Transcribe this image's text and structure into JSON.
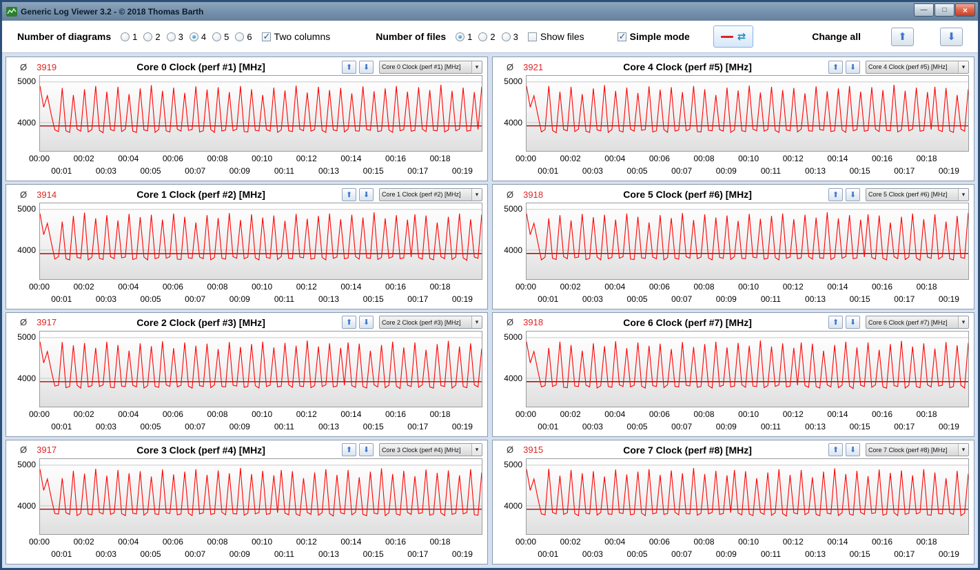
{
  "window": {
    "title": "Generic Log Viewer 3.2 - © 2018 Thomas Barth",
    "controls": {
      "minimize": "—",
      "maximize": "□",
      "close": "×"
    }
  },
  "icons": {
    "up_arrow": "⬆",
    "down_arrow": "⬇",
    "refresh_arrows": "⇄",
    "chevron_down": "▾",
    "app_icon": "chart-icon"
  },
  "toolbar": {
    "diagrams_label": "Number of diagrams",
    "diagram_options": [
      "1",
      "2",
      "3",
      "4",
      "5",
      "6"
    ],
    "diagrams_selected": "4",
    "two_columns_label": "Two columns",
    "two_columns_checked": true,
    "files_label": "Number of files",
    "file_options": [
      "1",
      "2",
      "3"
    ],
    "files_selected": "1",
    "show_files_label": "Show files",
    "show_files_checked": false,
    "simple_mode_label": "Simple mode",
    "simple_mode_checked": true,
    "change_all_label": "Change all"
  },
  "chart_data": {
    "type": "line",
    "avg_symbol": "Ø",
    "ylabel": "MHz",
    "x_unit": "mm:ss elapsed time",
    "x_range_minutes": [
      0,
      19.9
    ],
    "ylim": [
      3300,
      5150
    ],
    "y_ticks": [
      5000,
      4000
    ],
    "x_ticks_row1": [
      "00:00",
      "00:02",
      "00:04",
      "00:06",
      "00:08",
      "00:10",
      "00:12",
      "00:14",
      "00:16",
      "00:18"
    ],
    "x_ticks_row2": [
      "00:01",
      "00:03",
      "00:05",
      "00:07",
      "00:09",
      "00:11",
      "00:13",
      "00:15",
      "00:17",
      "00:19"
    ],
    "series_color": "#ff0000",
    "average_line_color": "#b40000",
    "grid_color": "#c9c9c9",
    "legend_position": "none",
    "shared_values": [
      4900,
      4380,
      4660,
      4210,
      3820,
      3780,
      4850,
      3800,
      3760,
      4680,
      3840,
      3790,
      4820,
      3770,
      3830,
      4900,
      3810,
      3750,
      4760,
      3830,
      3800,
      4880,
      3780,
      3840,
      4700,
      3790,
      3760,
      4840,
      3820,
      3800,
      4920,
      3760,
      3830,
      4780,
      3800,
      3770,
      4860,
      3840,
      3790,
      4730,
      3810,
      3830,
      4890,
      3770,
      3800,
      4810,
      3830,
      3760,
      4870,
      3790,
      3820,
      4750,
      3800,
      3840,
      4900,
      3780,
      3770,
      4820,
      3810,
      3800,
      4680,
      3830,
      3790,
      4860,
      3760,
      3820,
      4790,
      3800,
      3780,
      4910,
      3840,
      3800,
      4740,
      3790,
      3830,
      4880,
      3810,
      3760,
      4800,
      3820,
      3800,
      4850,
      3770,
      3840,
      4720,
      3800,
      3790,
      4890,
      3830,
      3810,
      4770,
      3780,
      3800,
      4840,
      3820,
      3760,
      4900,
      3800,
      3830,
      4760,
      3790,
      3810,
      4870,
      3840,
      3780,
      4800,
      3810,
      3800,
      4930,
      3770,
      3820,
      4780,
      3800,
      3840,
      4860,
      3790,
      3810,
      4750,
      3830,
      4880
    ],
    "charts": [
      {
        "title": "Core 0 Clock (perf #1) [MHz]",
        "average": 3919,
        "dropdown_value": "Core 0 Clock (perf #1) [MHz]"
      },
      {
        "title": "Core 4 Clock (perf #5) [MHz]",
        "average": 3921,
        "dropdown_value": "Core 4 Clock (perf #5) [MHz]"
      },
      {
        "title": "Core 1 Clock (perf #2) [MHz]",
        "average": 3914,
        "dropdown_value": "Core 1 Clock (perf #2) [MHz]"
      },
      {
        "title": "Core 5 Clock (perf #6) [MHz]",
        "average": 3918,
        "dropdown_value": "Core 5 Clock (perf #6) [MHz]"
      },
      {
        "title": "Core 2 Clock (perf #3) [MHz]",
        "average": 3917,
        "dropdown_value": "Core 2 Clock (perf #3) [MHz]"
      },
      {
        "title": "Core 6 Clock (perf #7) [MHz]",
        "average": 3918,
        "dropdown_value": "Core 6 Clock (perf #7) [MHz]"
      },
      {
        "title": "Core 3 Clock (perf #4) [MHz]",
        "average": 3917,
        "dropdown_value": "Core 3 Clock (perf #4) [MHz]"
      },
      {
        "title": "Core 7 Clock (perf #8) [MHz]",
        "average": 3915,
        "dropdown_value": "Core 7 Clock (perf #8) [MHz]"
      }
    ]
  }
}
